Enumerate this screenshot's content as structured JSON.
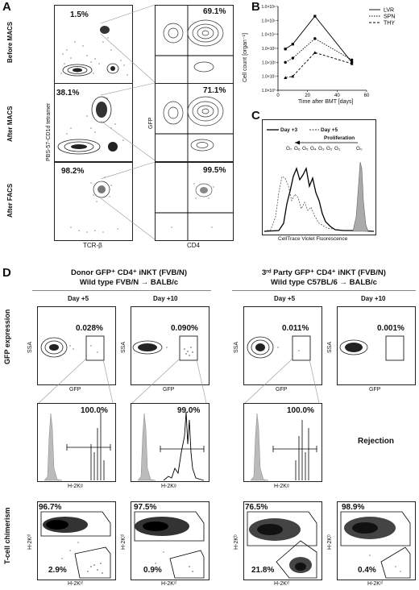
{
  "panels": {
    "A": "A",
    "B": "B",
    "C": "C",
    "D": "D"
  },
  "panel_a": {
    "row_labels": [
      "Before MACS",
      "After MACS",
      "After FACS"
    ],
    "left_pcts": [
      "1.5%",
      "38.1%",
      "98.2%"
    ],
    "right_pcts": [
      "69.1%",
      "71.1%",
      "99.5%"
    ],
    "y_left": "PBS-57-CD1d tetramer",
    "y_right": "GFP",
    "x_left": "TCR-β",
    "x_right": "CD4"
  },
  "chart_data": {
    "type": "line",
    "x": [
      5,
      10,
      25,
      50
    ],
    "xlabel": "Time after BMT [days]",
    "ylabel": "Cell count [organ⁻¹]",
    "yscale": "log",
    "ylim": [
      1,
      1000000
    ],
    "xlim": [
      0,
      60
    ],
    "xticks": [
      "0",
      "20",
      "40",
      "60"
    ],
    "yticks": [
      "1.0×10⁰",
      "1.0×10¹",
      "1.0×10²",
      "1.0×10³",
      "1.0×10⁴",
      "1.0×10⁵",
      "1.0×10⁶"
    ],
    "legend_placement": "top-right",
    "series": [
      {
        "name": "LVR",
        "style": "solid",
        "values": [
          900,
          2000,
          200000,
          100
        ]
      },
      {
        "name": "SPN",
        "style": "dotted",
        "values": [
          100,
          200,
          5000,
          150
        ]
      },
      {
        "name": "THY",
        "style": "dashed",
        "values": [
          8,
          10,
          500,
          80
        ]
      }
    ]
  },
  "panel_c": {
    "legend": [
      "Day +3",
      "Day +5"
    ],
    "arrow_label": "Proliferation",
    "generations": [
      "G₇",
      "G₆",
      "G₅",
      "G₄",
      "G₃",
      "G₂",
      "G₁",
      "G₀"
    ],
    "xlabel": "CellTrace Violet Fluorescence"
  },
  "panel_d": {
    "left_header": [
      "Donor GFP⁺ CD4⁺ iNKT (FVB/N)",
      "Wild type FVB/N → BALB/c"
    ],
    "right_header": [
      "3ʳᵈ Party GFP⁺ CD4⁺ iNKT (FVB/N)",
      "Wild type C57BL/6 → BALB/c"
    ],
    "days": [
      "Day +5",
      "Day +10",
      "Day +5",
      "Day +10"
    ],
    "row_labels": [
      "GFP expression",
      "T-cell chimerism"
    ],
    "ssa": "SSA",
    "gfp": "GFP",
    "gfp_pcts": [
      "0.028%",
      "0.090%",
      "0.011%",
      "0.001%"
    ],
    "hist_pcts": [
      "100.0%",
      "99.0%",
      "100.0%"
    ],
    "hist_x": [
      "H-2Kᵍ",
      "H-2Kᵍ",
      "H-2Kᵍ"
    ],
    "rejection": "Rejection",
    "chim_y": [
      "H-2Kᵈ",
      "H-2Kᵈ",
      "H-2Kᵇ",
      "H-2Kᵇ"
    ],
    "chim_x": [
      "H-2Kᵈ",
      "H-2Kᵈ",
      "H-2Kᵈ",
      "H-2Kᵈ"
    ],
    "chim_top": [
      "96.7%",
      "97.5%",
      "76.5%",
      "98.9%"
    ],
    "chim_bot": [
      "2.9%",
      "0.9%",
      "21.8%",
      "0.4%"
    ]
  }
}
